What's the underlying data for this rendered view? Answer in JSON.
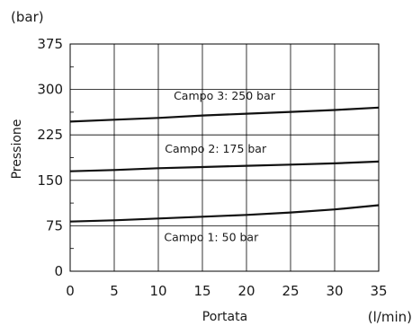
{
  "chart_data": {
    "type": "line",
    "xlabel": "Portata",
    "ylabel": "Pressione",
    "xunit": "(l/min)",
    "yunit": "(bar)",
    "xlim": [
      0,
      35
    ],
    "ylim": [
      0,
      375
    ],
    "xticks": [
      0,
      5,
      10,
      15,
      20,
      25,
      30,
      35
    ],
    "yticks": [
      0,
      75,
      150,
      225,
      300,
      375
    ],
    "grid": true,
    "series": [
      {
        "name": "Campo 3: 250 bar",
        "x": [
          0,
          5,
          10,
          15,
          20,
          25,
          30,
          35
        ],
        "y": [
          247,
          250,
          253,
          257,
          260,
          263,
          266,
          270
        ]
      },
      {
        "name": "Campo 2: 175 bar",
        "x": [
          0,
          5,
          10,
          15,
          20,
          25,
          30,
          35
        ],
        "y": [
          165,
          167,
          170,
          172,
          174,
          176,
          178,
          181
        ]
      },
      {
        "name": "Campo 1: 50 bar",
        "x": [
          0,
          5,
          10,
          15,
          20,
          25,
          30,
          35
        ],
        "y": [
          82,
          84,
          87,
          90,
          93,
          97,
          102,
          109
        ]
      }
    ],
    "colors": {
      "line": "#111111",
      "grid": "#000000"
    }
  }
}
